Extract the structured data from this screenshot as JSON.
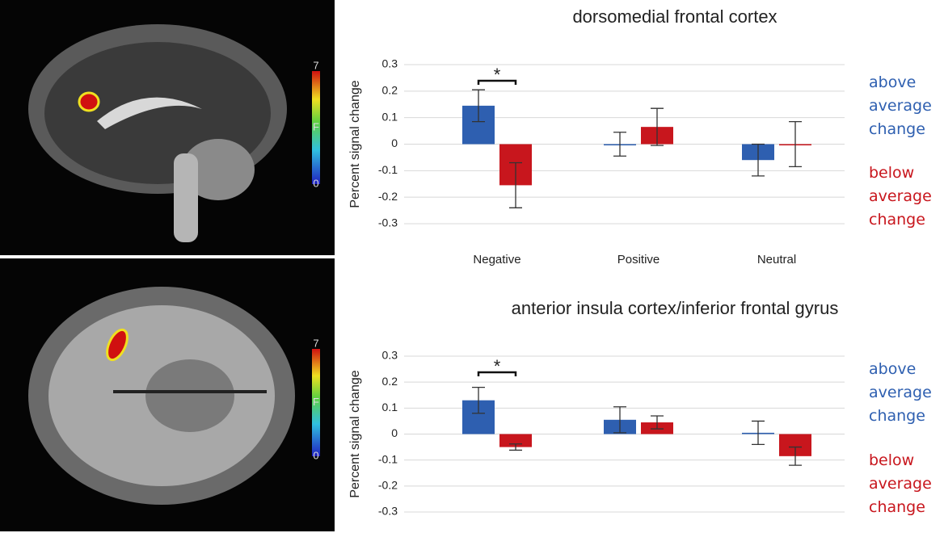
{
  "brain_panels": [
    {
      "colorbar_labels": [
        "7",
        "F",
        "0"
      ]
    },
    {
      "colorbar_labels": [
        "7",
        "F",
        "0"
      ]
    }
  ],
  "chart_data": [
    {
      "type": "bar",
      "title": "dorsomedial frontal cortex",
      "y_label": "Percent signal change",
      "categories": [
        "Negative",
        "Positive",
        "Neutral"
      ],
      "series": [
        {
          "name": "above average change",
          "color": "#2e5fb0",
          "values": [
            0.145,
            0.0,
            -0.06
          ],
          "errors": [
            0.06,
            0.045,
            0.06
          ]
        },
        {
          "name": "below average change",
          "color": "#c8161d",
          "values": [
            -0.155,
            0.065,
            0.0
          ],
          "errors": [
            0.085,
            0.07,
            0.085
          ]
        }
      ],
      "ylim": [
        -0.3,
        0.3
      ],
      "yticks": [
        0.3,
        0.2,
        0.1,
        0,
        -0.1,
        -0.2,
        -0.3
      ],
      "grid": true,
      "annotations": [
        "*"
      ]
    },
    {
      "type": "bar",
      "title": "anterior insula cortex/inferior frontal gyrus",
      "y_label": "Percent signal change",
      "categories": [
        null,
        null,
        null
      ],
      "series": [
        {
          "name": "above average change",
          "color": "#2e5fb0",
          "values": [
            0.13,
            0.055,
            0.005
          ],
          "errors": [
            0.05,
            0.05,
            0.045
          ]
        },
        {
          "name": "below average change",
          "color": "#c8161d",
          "values": [
            -0.05,
            0.045,
            -0.085
          ],
          "errors": [
            0.012,
            0.025,
            0.035
          ]
        }
      ],
      "ylim": [
        -0.3,
        0.3
      ],
      "yticks": [
        0.3,
        0.2,
        0.1,
        0,
        -0.1,
        -0.2,
        -0.3
      ],
      "grid": true,
      "annotations": [
        "*"
      ]
    }
  ]
}
